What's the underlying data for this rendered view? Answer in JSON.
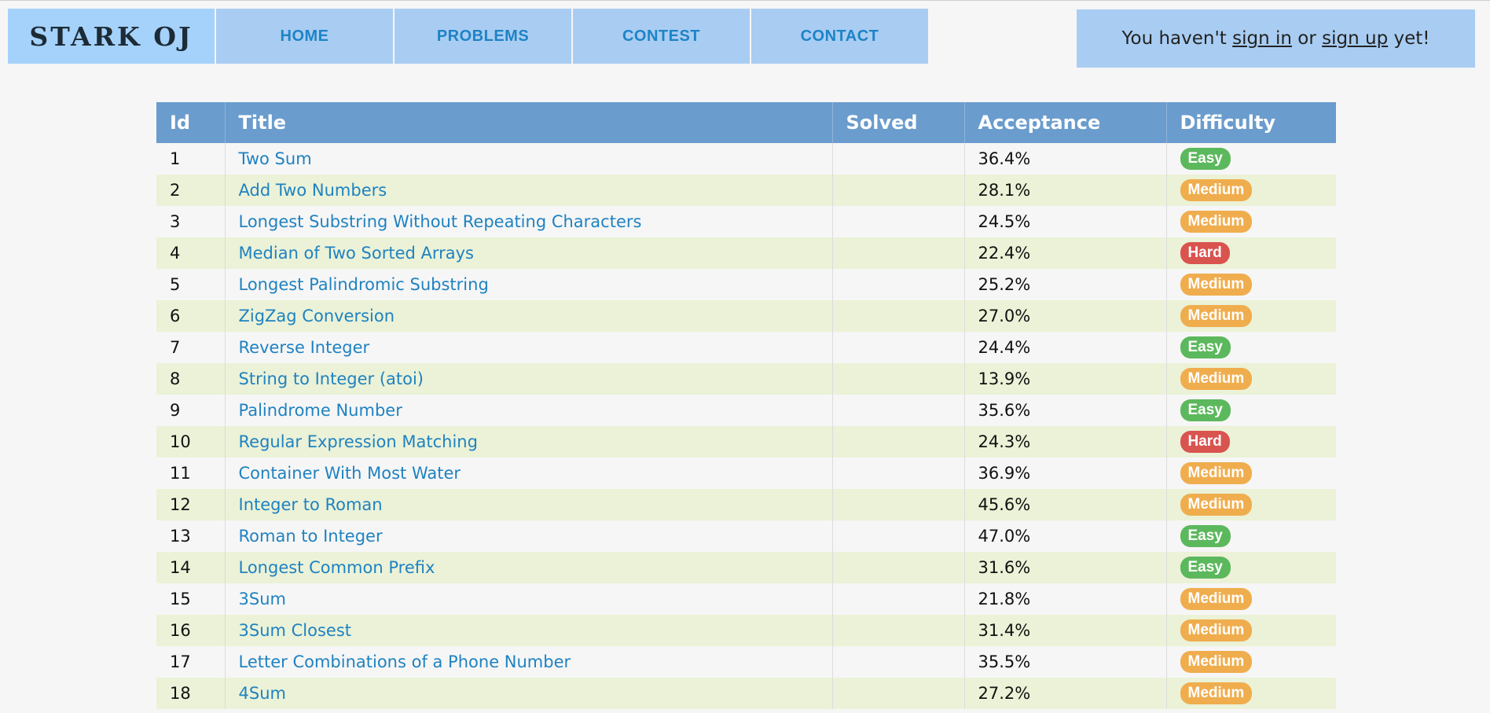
{
  "brand": {
    "logo": "STARK OJ"
  },
  "nav": [
    {
      "label": "HOME"
    },
    {
      "label": "PROBLEMS"
    },
    {
      "label": "CONTEST"
    },
    {
      "label": "CONTACT"
    }
  ],
  "user": {
    "prefix": "You haven't ",
    "sign_in": "sign in",
    "middle": " or ",
    "sign_up": "sign up",
    "suffix": " yet!"
  },
  "table": {
    "headers": {
      "id": "Id",
      "title": "Title",
      "solved": "Solved",
      "acceptance": "Acceptance",
      "difficulty": "Difficulty"
    },
    "rows": [
      {
        "id": "1",
        "title": "Two Sum",
        "solved": "",
        "acceptance": "36.4%",
        "difficulty": "Easy"
      },
      {
        "id": "2",
        "title": "Add Two Numbers",
        "solved": "",
        "acceptance": "28.1%",
        "difficulty": "Medium"
      },
      {
        "id": "3",
        "title": "Longest Substring Without Repeating Characters",
        "solved": "",
        "acceptance": "24.5%",
        "difficulty": "Medium"
      },
      {
        "id": "4",
        "title": "Median of Two Sorted Arrays",
        "solved": "",
        "acceptance": "22.4%",
        "difficulty": "Hard"
      },
      {
        "id": "5",
        "title": "Longest Palindromic Substring",
        "solved": "",
        "acceptance": "25.2%",
        "difficulty": "Medium"
      },
      {
        "id": "6",
        "title": "ZigZag Conversion",
        "solved": "",
        "acceptance": "27.0%",
        "difficulty": "Medium"
      },
      {
        "id": "7",
        "title": "Reverse Integer",
        "solved": "",
        "acceptance": "24.4%",
        "difficulty": "Easy"
      },
      {
        "id": "8",
        "title": "String to Integer (atoi)",
        "solved": "",
        "acceptance": "13.9%",
        "difficulty": "Medium"
      },
      {
        "id": "9",
        "title": "Palindrome Number",
        "solved": "",
        "acceptance": "35.6%",
        "difficulty": "Easy"
      },
      {
        "id": "10",
        "title": "Regular Expression Matching",
        "solved": "",
        "acceptance": "24.3%",
        "difficulty": "Hard"
      },
      {
        "id": "11",
        "title": "Container With Most Water",
        "solved": "",
        "acceptance": "36.9%",
        "difficulty": "Medium"
      },
      {
        "id": "12",
        "title": "Integer to Roman",
        "solved": "",
        "acceptance": "45.6%",
        "difficulty": "Medium"
      },
      {
        "id": "13",
        "title": "Roman to Integer",
        "solved": "",
        "acceptance": "47.0%",
        "difficulty": "Easy"
      },
      {
        "id": "14",
        "title": "Longest Common Prefix",
        "solved": "",
        "acceptance": "31.6%",
        "difficulty": "Easy"
      },
      {
        "id": "15",
        "title": "3Sum",
        "solved": "",
        "acceptance": "21.8%",
        "difficulty": "Medium"
      },
      {
        "id": "16",
        "title": "3Sum Closest",
        "solved": "",
        "acceptance": "31.4%",
        "difficulty": "Medium"
      },
      {
        "id": "17",
        "title": "Letter Combinations of a Phone Number",
        "solved": "",
        "acceptance": "35.5%",
        "difficulty": "Medium"
      },
      {
        "id": "18",
        "title": "4Sum",
        "solved": "",
        "acceptance": "27.2%",
        "difficulty": "Medium"
      }
    ]
  },
  "colors": {
    "easy": "#5cb85c",
    "medium": "#f0ad4e",
    "hard": "#d9534f",
    "header": "#6a9ccd",
    "nav": "#a9cdf2",
    "link": "#1f82c1"
  }
}
